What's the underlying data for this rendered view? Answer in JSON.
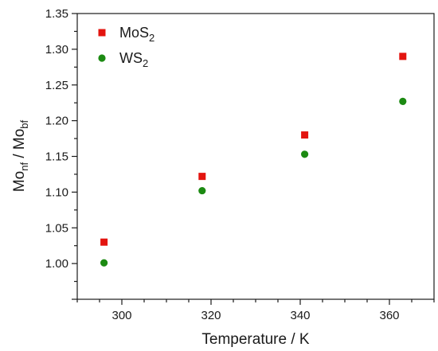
{
  "chart_data": {
    "type": "scatter",
    "title": "",
    "xlabel": "Temperature / K",
    "ylabel": {
      "base": "Mo",
      "sub1": "nf",
      "sep": " / Mo",
      "sub2": "bf"
    },
    "xlim": [
      290,
      370
    ],
    "ylim": [
      0.95,
      1.35
    ],
    "xticks": [
      300,
      320,
      340,
      360
    ],
    "yticks": [
      1.0,
      1.05,
      1.1,
      1.15,
      1.2,
      1.25,
      1.3,
      1.35
    ],
    "ytick_labels": [
      "1.00",
      "1.05",
      "1.10",
      "1.15",
      "1.20",
      "1.25",
      "1.30",
      "1.35"
    ],
    "grid": false,
    "legend_position": "top-left",
    "series": [
      {
        "name": "MoS2",
        "name_base": "MoS",
        "name_sub": "2",
        "marker": "square",
        "color": "#e3140f",
        "x": [
          296,
          318,
          341,
          363
        ],
        "y": [
          1.03,
          1.122,
          1.18,
          1.29
        ]
      },
      {
        "name": "WS2",
        "name_base": "WS",
        "name_sub": "2",
        "marker": "circle",
        "color": "#1c8a12",
        "x": [
          296,
          318,
          341,
          363
        ],
        "y": [
          1.001,
          1.102,
          1.153,
          1.227
        ]
      }
    ]
  }
}
